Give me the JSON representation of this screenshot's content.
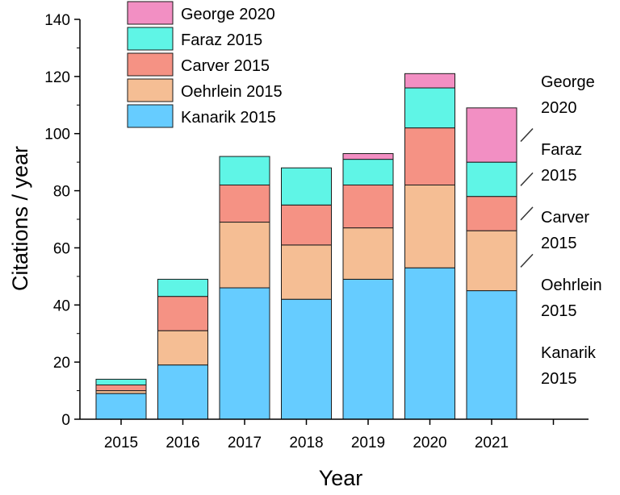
{
  "chart_data": {
    "type": "bar",
    "stacked": true,
    "xlabel": "Year",
    "ylabel": "Citations / year",
    "ylim": [
      0,
      140
    ],
    "yticks": [
      0,
      20,
      40,
      60,
      80,
      100,
      120,
      140
    ],
    "categories": [
      "2015",
      "2016",
      "2017",
      "2018",
      "2019",
      "2020",
      "2021"
    ],
    "grid": false,
    "legend_position": "top-left",
    "series": [
      {
        "name": "Kanarik 2015",
        "color": "#66ccff",
        "values": [
          9,
          19,
          46,
          42,
          49,
          53,
          45
        ]
      },
      {
        "name": "Oehrlein 2015",
        "color": "#f5be94",
        "values": [
          1,
          12,
          23,
          19,
          18,
          29,
          21
        ]
      },
      {
        "name": "Carver 2015",
        "color": "#f59284",
        "values": [
          2,
          12,
          13,
          14,
          15,
          20,
          12
        ]
      },
      {
        "name": "Faraz    2015",
        "color": "#5ff5e6",
        "values": [
          2,
          6,
          10,
          13,
          9,
          14,
          12
        ]
      },
      {
        "name": "George 2020",
        "color": "#f28fc3",
        "values": [
          0,
          0,
          0,
          0,
          2,
          5,
          19
        ]
      }
    ],
    "annotations": [
      {
        "lines": [
          "George",
          "2020"
        ],
        "series": "George 2020"
      },
      {
        "lines": [
          "Faraz",
          "2015"
        ],
        "series": "Faraz    2015"
      },
      {
        "lines": [
          "Carver",
          "2015"
        ],
        "series": "Carver 2015"
      },
      {
        "lines": [
          "Oehrlein",
          "2015"
        ],
        "series": "Oehrlein 2015"
      },
      {
        "lines": [
          "Kanarik",
          "2015"
        ],
        "series": "Kanarik 2015"
      }
    ]
  }
}
